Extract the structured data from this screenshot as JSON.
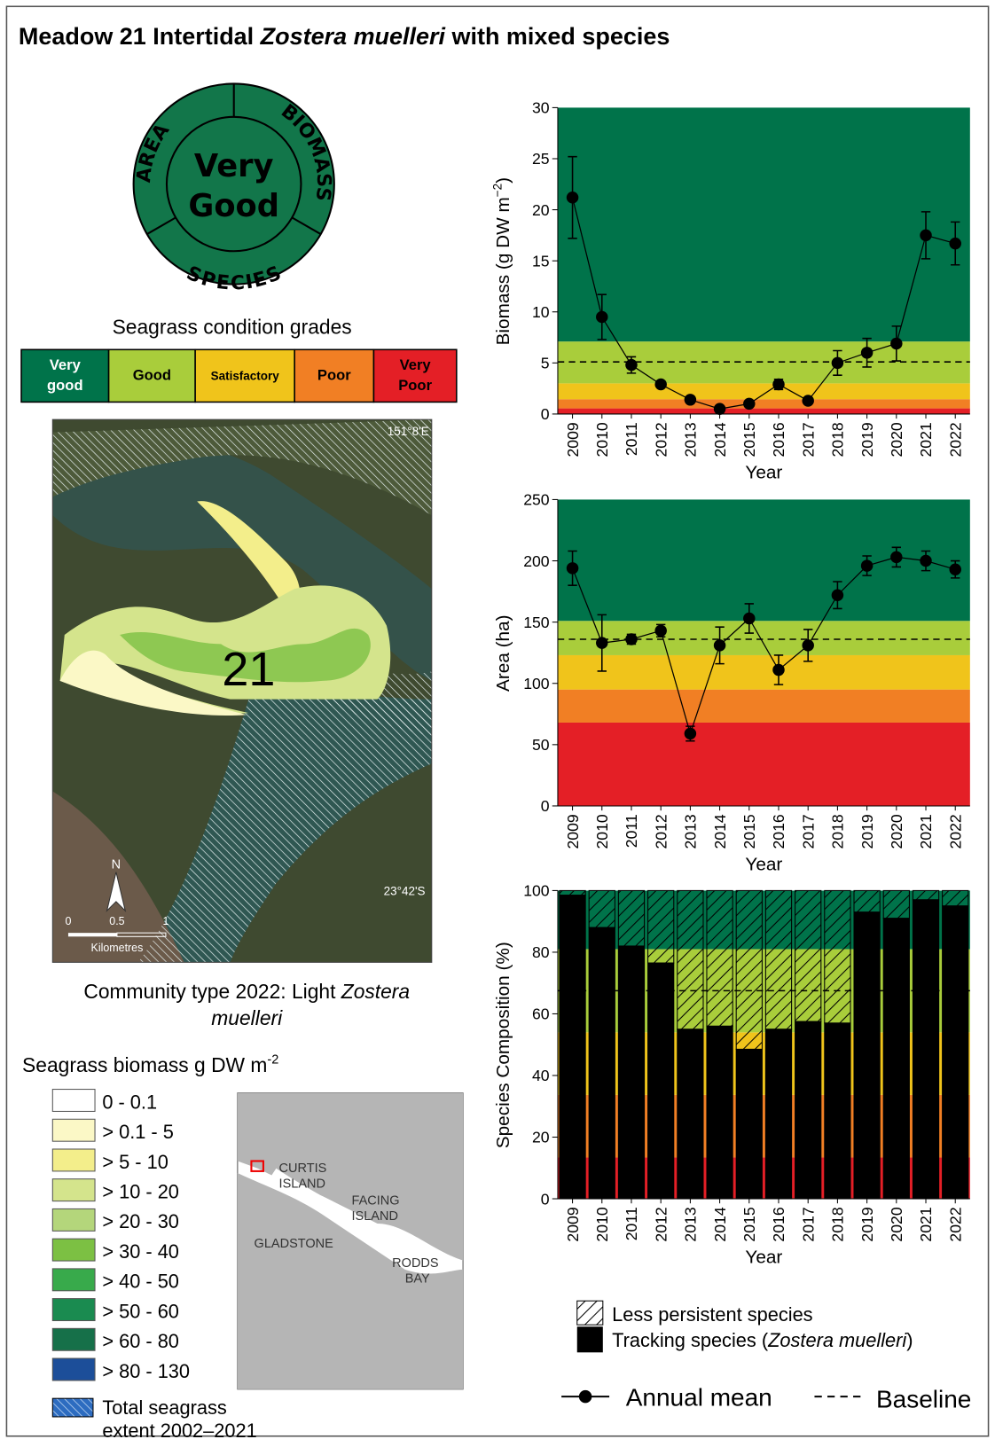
{
  "header": {
    "title": [
      "Meadow 21 Intertidal ",
      "Zostera muelleri",
      " with mixed species"
    ]
  },
  "wheel": {
    "area": "AREA",
    "biomass": "BIOMASS",
    "species": "SPECIES",
    "grade": [
      "Very",
      "Good"
    ]
  },
  "grades": {
    "title": "Seagrass condition grades",
    "items": [
      {
        "lines": [
          "Very",
          "good"
        ],
        "color": "#00734a"
      },
      {
        "lines": [
          "Good"
        ],
        "color": "#a9cd3b"
      },
      {
        "lines": [
          "Satisfactory"
        ],
        "color": "#f0c41b"
      },
      {
        "lines": [
          "Poor"
        ],
        "color": "#f17f24"
      },
      {
        "lines": [
          "Very",
          "Poor"
        ],
        "color": "#e41f26"
      }
    ]
  },
  "map": {
    "longitude": "151°8'E",
    "latitude": "23°42'S",
    "meadow": "21",
    "north": "N",
    "scale": [
      "0",
      "0.5",
      "1"
    ],
    "scale_unit": "Kilometres"
  },
  "community": {
    "lines": [
      [
        "Community type 2022: Light ",
        "Zostera"
      ],
      [
        "muelleri"
      ]
    ]
  },
  "biomass_legend": {
    "title": [
      "Seagrass biomass g DW m",
      "-2"
    ],
    "items": [
      {
        "label": "0 - 0.1",
        "color": "#ffffff"
      },
      {
        "label": "> 0.1 - 5",
        "color": "#fbf8c6"
      },
      {
        "label": "> 5 - 10",
        "color": "#f3ee8b"
      },
      {
        "label": "> 10 - 20",
        "color": "#d4e48c"
      },
      {
        "label": "> 20 - 30",
        "color": "#b4d67b"
      },
      {
        "label": "> 30 - 40",
        "color": "#7cc043"
      },
      {
        "label": "> 40 - 50",
        "color": "#38aa4b"
      },
      {
        "label": "> 50 - 60",
        "color": "#1a8b50"
      },
      {
        "label": "> 60 - 80",
        "color": "#167049"
      },
      {
        "label": "> 80 - 130",
        "color": "#1c4e99"
      }
    ],
    "extent": [
      "Total seagrass",
      "extent  2002–2021"
    ]
  },
  "locator": {
    "curtis": [
      "CURTIS",
      "ISLAND"
    ],
    "facing": [
      "FACING",
      "ISLAND"
    ],
    "gladstone": "GLADSTONE",
    "rodds": [
      "RODDS",
      "BAY"
    ]
  },
  "chart_data": [
    {
      "type": "line",
      "ylabel": [
        "Biomass (g DW m",
        "−2",
        ")"
      ],
      "xlabel": "Year",
      "categories": [
        "2009",
        "2010",
        "2011",
        "2012",
        "2013",
        "2014",
        "2015",
        "2016",
        "2017",
        "2018",
        "2019",
        "2020",
        "2021",
        "2022"
      ],
      "series": [
        {
          "color": "#000000",
          "values": [
            21.2,
            9.5,
            4.8,
            2.9,
            1.4,
            0.5,
            1.0,
            2.9,
            1.3,
            5.0,
            6.0,
            6.9,
            17.5,
            16.7
          ],
          "errors": [
            4.0,
            2.2,
            0.8,
            0.3,
            0.2,
            0.1,
            0.2,
            0.5,
            0.2,
            1.2,
            1.4,
            1.7,
            2.3,
            2.1
          ]
        }
      ],
      "baseline": 5.1,
      "bands": [
        {
          "from": 0,
          "to": 0.55,
          "color": "#e41f26"
        },
        {
          "from": 0.55,
          "to": 1.45,
          "color": "#f17f24"
        },
        {
          "from": 1.45,
          "to": 3.0,
          "color": "#f0c41b"
        },
        {
          "from": 3.0,
          "to": 7.1,
          "color": "#a9cd3b"
        },
        {
          "from": 7.1,
          "to": 30,
          "color": "#00734a"
        }
      ],
      "ylim": [
        0,
        30
      ],
      "yticks": [
        0,
        5,
        10,
        15,
        20,
        25,
        30
      ]
    },
    {
      "type": "line",
      "ylabel": [
        "Area (ha)"
      ],
      "xlabel": "Year",
      "categories": [
        "2009",
        "2010",
        "2011",
        "2012",
        "2013",
        "2014",
        "2015",
        "2016",
        "2017",
        "2018",
        "2019",
        "2020",
        "2021",
        "2022"
      ],
      "series": [
        {
          "color": "#000000",
          "values": [
            194,
            133,
            136,
            143,
            59,
            131,
            153,
            111,
            131,
            172,
            196,
            203,
            200,
            193
          ],
          "errors": [
            14,
            23,
            4,
            5,
            6,
            15,
            12,
            12,
            13,
            11,
            8,
            8,
            8,
            7
          ]
        }
      ],
      "baseline": 136,
      "bands": [
        {
          "from": 0,
          "to": 68,
          "color": "#e41f26"
        },
        {
          "from": 68,
          "to": 95,
          "color": "#f17f24"
        },
        {
          "from": 95,
          "to": 123,
          "color": "#f0c41b"
        },
        {
          "from": 123,
          "to": 151,
          "color": "#a9cd3b"
        },
        {
          "from": 151,
          "to": 250,
          "color": "#00734a"
        }
      ],
      "ylim": [
        0,
        250
      ],
      "yticks": [
        0,
        50,
        100,
        150,
        200,
        250
      ]
    },
    {
      "type": "bar",
      "ylabel": [
        "Species Composition (%)"
      ],
      "xlabel": "Year",
      "categories": [
        "2009",
        "2010",
        "2011",
        "2012",
        "2013",
        "2014",
        "2015",
        "2016",
        "2017",
        "2018",
        "2019",
        "2020",
        "2021",
        "2022"
      ],
      "series": [
        {
          "color": "#000000",
          "values": [
            98.5,
            88,
            82,
            76.5,
            55,
            56,
            48.5,
            55,
            57.5,
            57,
            93,
            91,
            97,
            95
          ]
        },
        {
          "color": "#000000",
          "values": [
            1.5,
            12,
            18,
            23.5,
            45,
            44,
            51.5,
            45,
            42.5,
            43,
            7,
            9,
            3,
            5
          ]
        }
      ],
      "baseline": 67.5,
      "bands": [
        {
          "from": 0,
          "to": 13.4,
          "color": "#e41f26"
        },
        {
          "from": 13.4,
          "to": 33.7,
          "color": "#f17f24"
        },
        {
          "from": 33.7,
          "to": 54,
          "color": "#f0c41b"
        },
        {
          "from": 54,
          "to": 81,
          "color": "#a9cd3b"
        },
        {
          "from": 81,
          "to": 100,
          "color": "#00734a"
        }
      ],
      "ylim": [
        0,
        100
      ],
      "yticks": [
        0,
        20,
        40,
        60,
        80,
        100
      ]
    }
  ],
  "legend": {
    "less": "Less persistent species",
    "tracking": [
      "Tracking species (",
      "Zostera muelleri",
      ")"
    ],
    "annual_mean": "Annual mean",
    "baseline": "Baseline"
  }
}
